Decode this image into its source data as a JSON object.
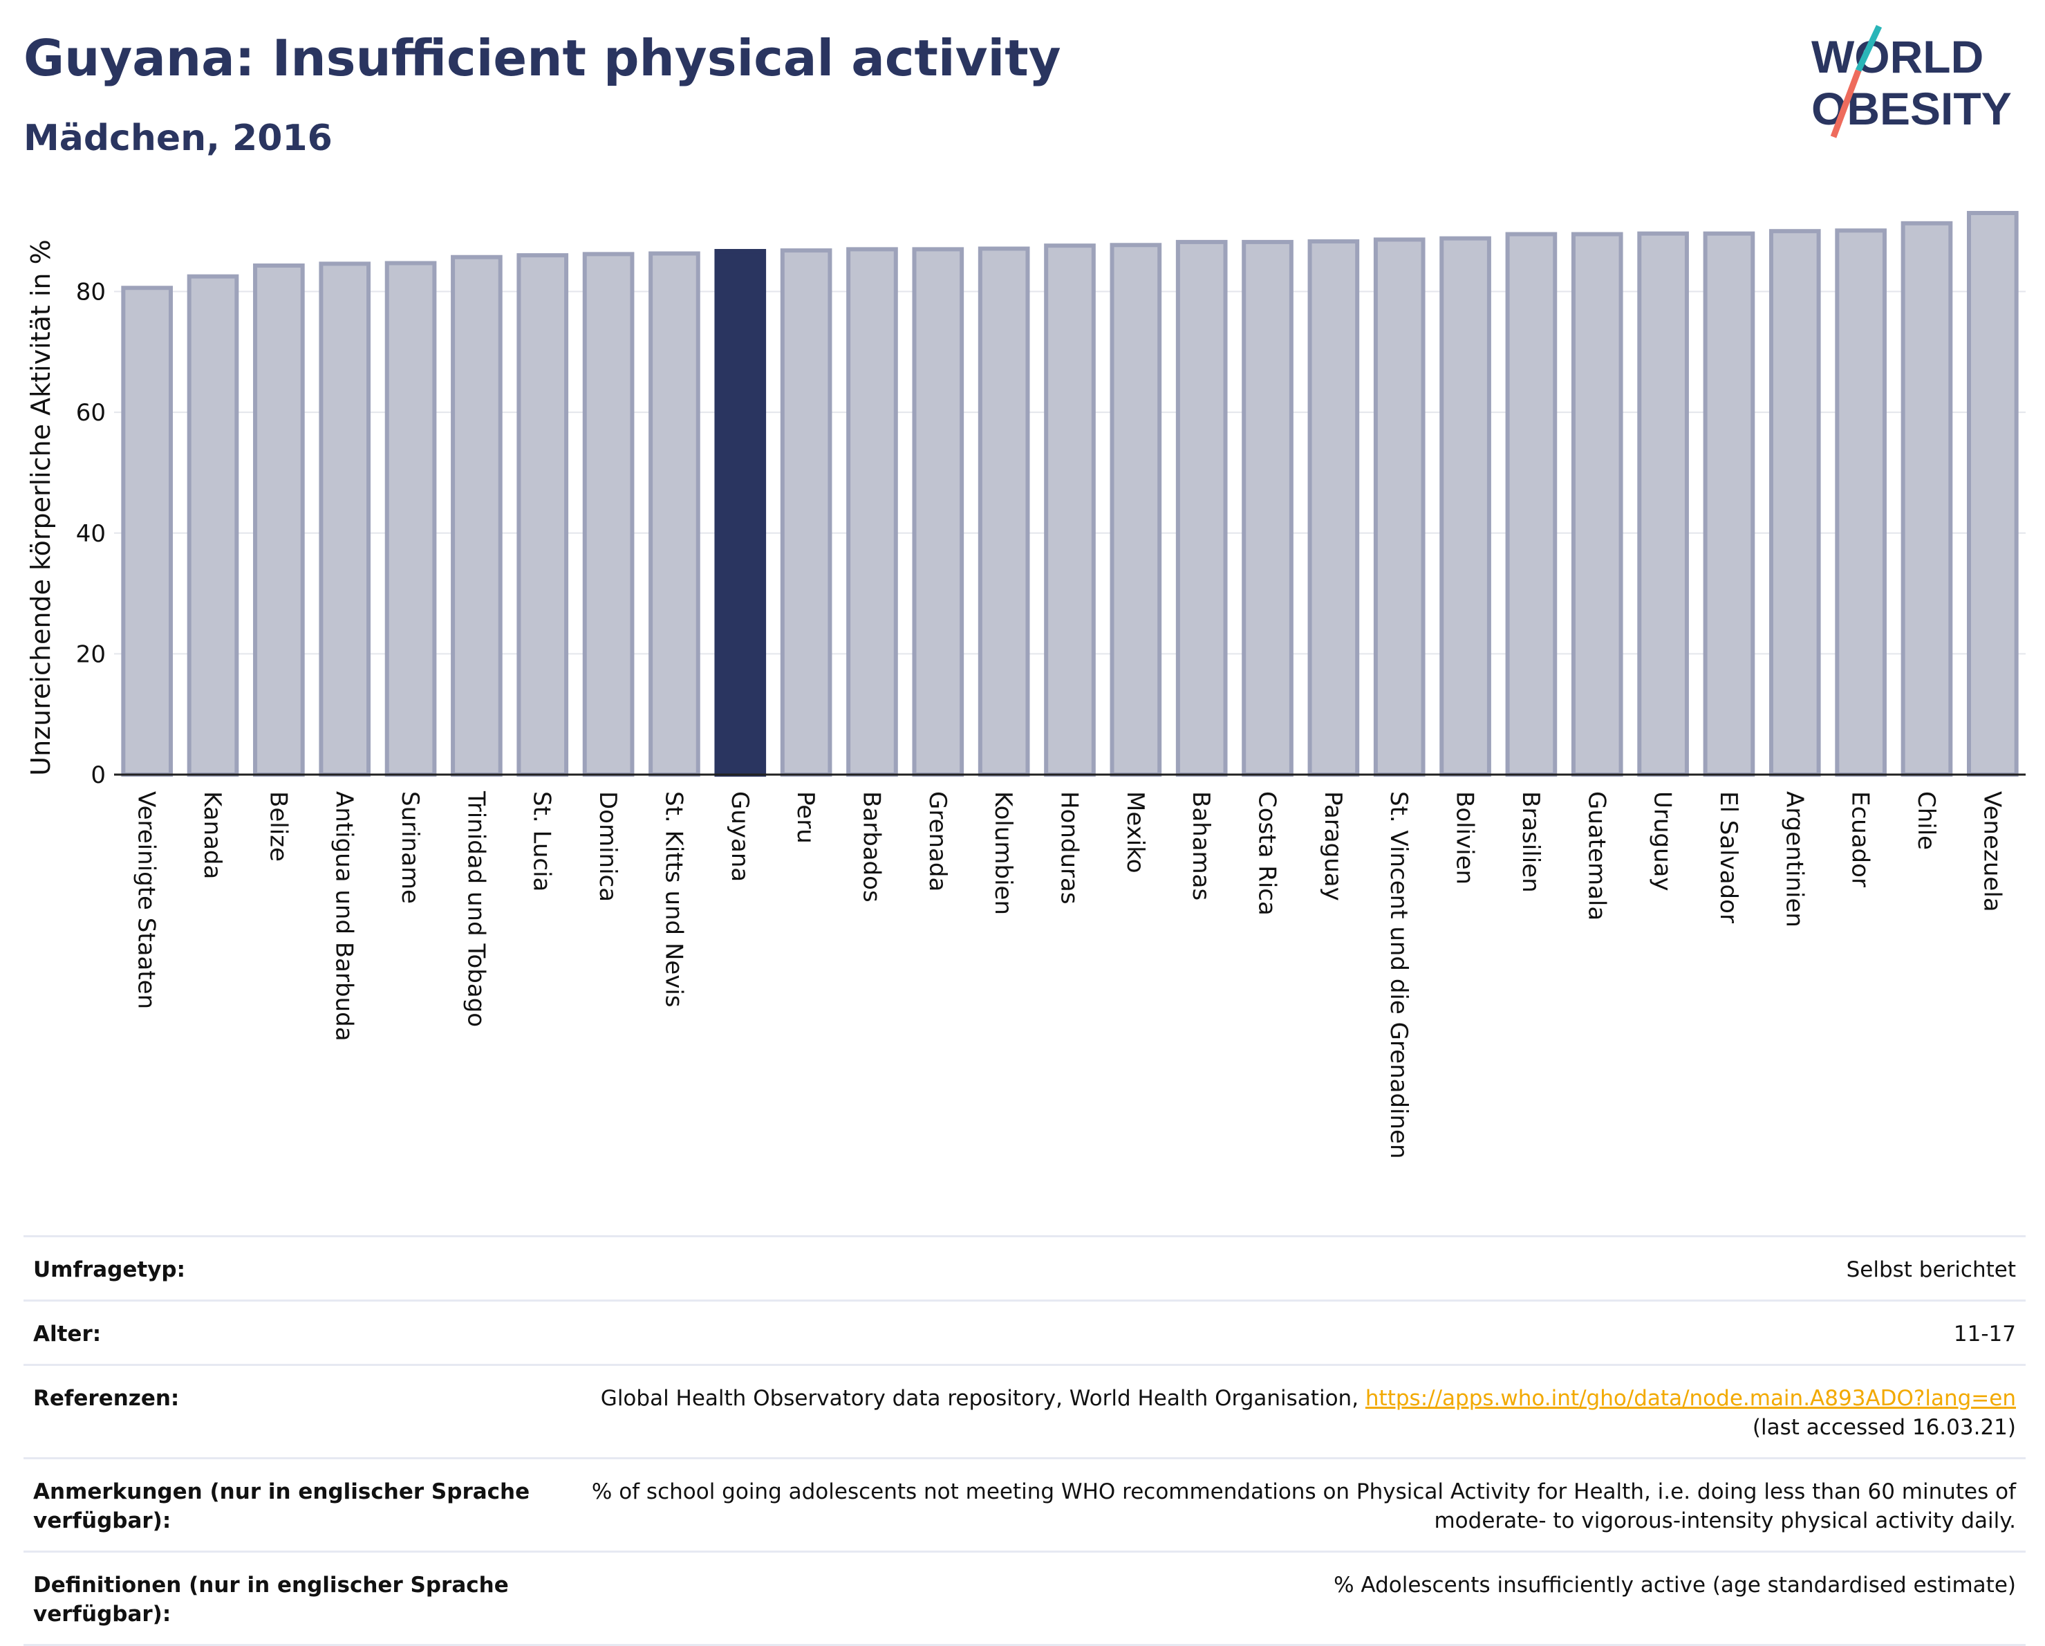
{
  "title": "Guyana: Insufficient physical activity",
  "subtitle": "Mädchen, 2016",
  "logo": {
    "line1": "WORLD",
    "line2": "OBESITY"
  },
  "colors": {
    "highlight": "#2a3560",
    "bar": "#c0c3d0",
    "bar_stroke": "#9da2ba",
    "grid": "#e4e6ec",
    "brand_teal": "#2ab5b8",
    "brand_coral": "#ee6b5c"
  },
  "chart_data": {
    "type": "bar",
    "ylabel": "Unzureichende körperliche Aktivität in %",
    "ylim": [
      0,
      93
    ],
    "yticks": [
      0,
      20,
      40,
      60,
      80
    ],
    "highlight": "Guyana",
    "categories": [
      "Vereinigte Staaten",
      "Kanada",
      "Belize",
      "Antigua und Barbuda",
      "Suriname",
      "Trinidad und Tobago",
      "St. Lucia",
      "Dominica",
      "St. Kitts und Nevis",
      "Guyana",
      "Peru",
      "Barbados",
      "Grenada",
      "Kolumbien",
      "Honduras",
      "Mexiko",
      "Bahamas",
      "Costa Rica",
      "Paraguay",
      "St. Vincent und die Grenadinen",
      "Bolivien",
      "Brasilien",
      "Guatemala",
      "Uruguay",
      "El Salvador",
      "Argentinien",
      "Ecuador",
      "Chile",
      "Venezuela"
    ],
    "values": [
      80.6,
      82.5,
      84.3,
      84.6,
      84.7,
      85.7,
      86.0,
      86.2,
      86.3,
      86.7,
      86.8,
      87.0,
      87.0,
      87.1,
      87.6,
      87.7,
      88.2,
      88.2,
      88.3,
      88.6,
      88.8,
      89.5,
      89.5,
      89.6,
      89.6,
      90.0,
      90.1,
      91.3,
      93.0
    ]
  },
  "info": [
    {
      "label": "Umfragetyp:",
      "value": "Selbst berichtet"
    },
    {
      "label": "Alter:",
      "value": "11-17"
    },
    {
      "label": "Referenzen:",
      "value": "Global Health Observatory data repository, World Health Organisation,",
      "link": "https://apps.who.int/gho/data/node.main.A893ADO?lang=en",
      "value2": "(last accessed 16.03.21)"
    },
    {
      "label": "Anmerkungen (nur in englischer Sprache verfügbar):",
      "value": "% of school going adolescents not meeting WHO recommendations on Physical Activity for Health, i.e. doing less than 60 minutes of moderate- to vigorous-intensity physical activity daily."
    },
    {
      "label": "Definitionen (nur in englischer Sprache verfügbar):",
      "value": "% Adolescents insufficiently active (age standardised estimate)"
    }
  ]
}
